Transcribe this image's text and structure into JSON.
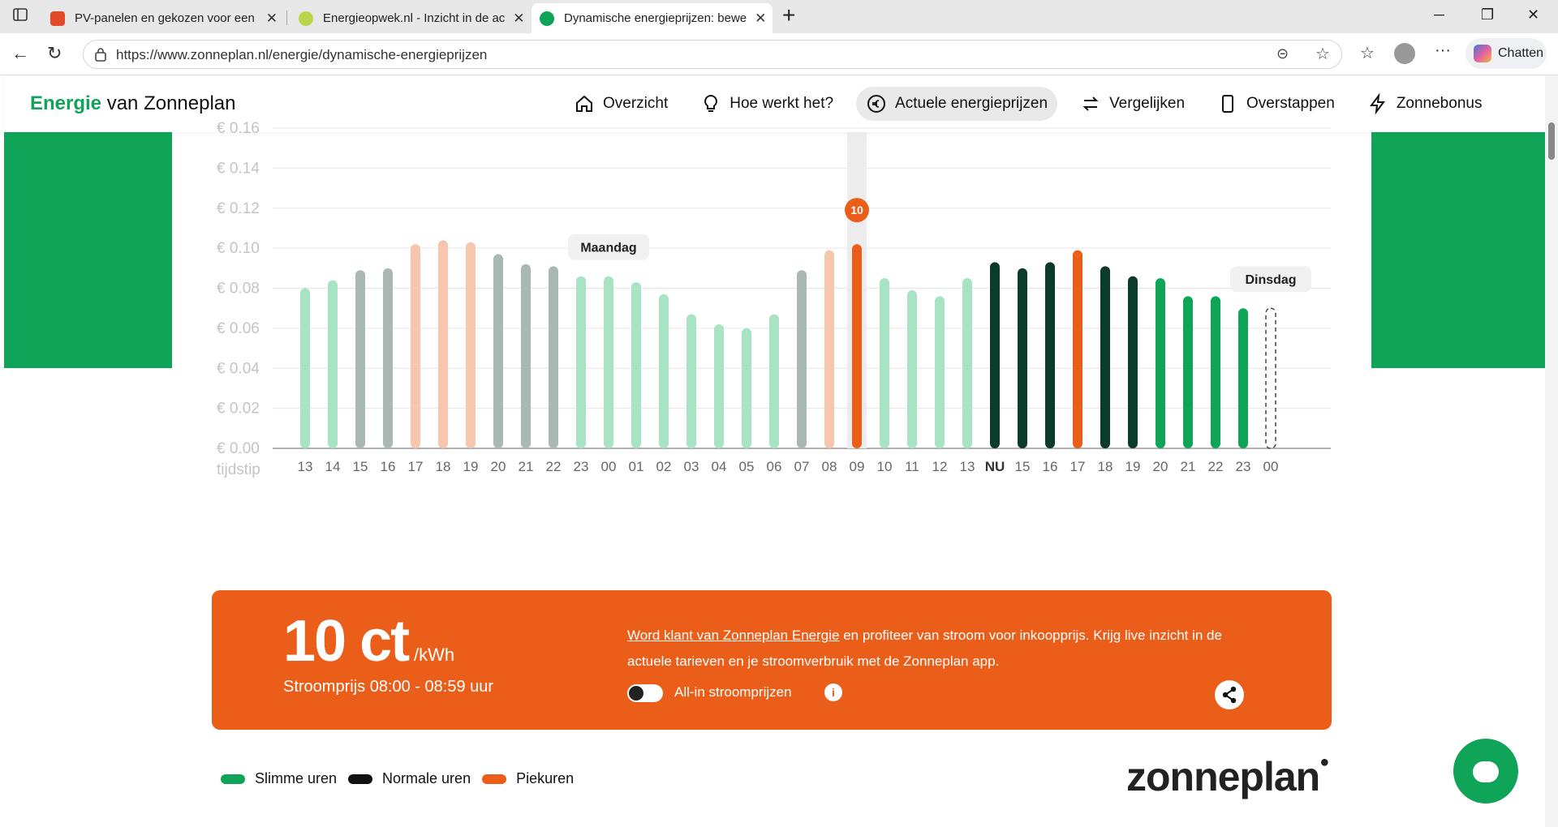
{
  "browser": {
    "tabs": [
      {
        "title": "PV-panelen en gekozen voor een",
        "active": false,
        "favicon_color": "#e04a2b"
      },
      {
        "title": "Energieopwek.nl - Inzicht in de ac",
        "active": false,
        "favicon_color": "#b9d64a"
      },
      {
        "title": "Dynamische energieprijzen: bewe",
        "active": true,
        "favicon_color": "#0fa457"
      }
    ],
    "new_tab_label": "+",
    "url": "https://www.zonneplan.nl/energie/dynamische-energieprijzen",
    "chat_label": "Chatten"
  },
  "site": {
    "brand_green": "Energie",
    "brand_rest": " van Zonneplan",
    "nav": [
      {
        "label": "Overzicht",
        "icon": "home-icon",
        "active": false
      },
      {
        "label": "Hoe werkt het?",
        "icon": "lightbulb-icon",
        "active": false
      },
      {
        "label": "Actuele energieprijzen",
        "icon": "euro-icon",
        "active": true
      },
      {
        "label": "Vergelijken",
        "icon": "swap-icon",
        "active": false
      },
      {
        "label": "Overstappen",
        "icon": "phone-icon",
        "active": false
      },
      {
        "label": "Zonnebonus",
        "icon": "bolt-icon",
        "active": false
      }
    ],
    "price_panel": {
      "price": "10 ct",
      "unit": "/kWh",
      "subtitle": "Stroomprijs 08:00 - 08:59 uur",
      "promo_link": "Word klant van Zonneplan Energie",
      "promo_text": " en profiteer van stroom voor inkoopprijs. Krijg live inzicht in de actuele tarieven en je stroomverbruik met de Zonneplan app.",
      "toggle_label": "All-in stroomprijzen",
      "info_icon": "i"
    },
    "legend": [
      {
        "label": "Slimme uren",
        "color": "#0fa457"
      },
      {
        "label": "Normale uren",
        "color": "#111111"
      },
      {
        "label": "Piekuren",
        "color": "#eb5e1a"
      }
    ],
    "logo": "zonneplan"
  },
  "chart_data": {
    "type": "bar",
    "x_label": "tijdstip",
    "y_ticks": [
      "€ 0.00",
      "€ 0.02",
      "€ 0.04",
      "€ 0.06",
      "€ 0.08",
      "€ 0.10",
      "€ 0.12",
      "€ 0.14",
      "€ 0.16"
    ],
    "ylim": [
      0,
      0.16
    ],
    "day_labels": [
      {
        "label": "Maandag",
        "at_index": 11
      },
      {
        "label": "Dinsdag",
        "at_index": 35
      }
    ],
    "current_value_badge": "10",
    "current_index": 20,
    "categories": [
      "13",
      "14",
      "15",
      "16",
      "17",
      "18",
      "19",
      "20",
      "21",
      "22",
      "23",
      "00",
      "01",
      "02",
      "03",
      "04",
      "05",
      "06",
      "07",
      "08",
      "09",
      "10",
      "11",
      "12",
      "13",
      "NU",
      "15",
      "16",
      "17",
      "18",
      "19",
      "20",
      "21",
      "22",
      "23",
      "00"
    ],
    "values": [
      0.08,
      0.084,
      0.089,
      0.09,
      0.102,
      0.104,
      0.103,
      0.097,
      0.092,
      0.091,
      0.086,
      0.086,
      0.083,
      0.077,
      0.067,
      0.062,
      0.06,
      0.067,
      0.089,
      0.099,
      0.102,
      0.085,
      0.079,
      0.076,
      0.085,
      0.093,
      0.09,
      0.093,
      0.099,
      0.091,
      0.086,
      0.085,
      0.076,
      0.076,
      0.07,
      0.07
    ],
    "categories_class": [
      "smart",
      "smart",
      "normal",
      "normal",
      "peak",
      "peak",
      "peak",
      "normal",
      "normal",
      "normal",
      "smart",
      "smart",
      "smart",
      "smart",
      "smart",
      "smart",
      "smart",
      "smart",
      "normal",
      "peak",
      "peak",
      "smart",
      "smart",
      "smart",
      "smart",
      "normal",
      "normal",
      "normal",
      "peak",
      "normal",
      "normal",
      "smart",
      "smart",
      "smart",
      "smart",
      "future"
    ],
    "past_count": 25,
    "colors": {
      "smart": "#0fa457",
      "normal": "#0b3b2a",
      "peak": "#eb5e1a",
      "smart_past": "#a8e3c3",
      "normal_past": "#a9b8b3",
      "peak_past": "#f6c6ad"
    }
  }
}
